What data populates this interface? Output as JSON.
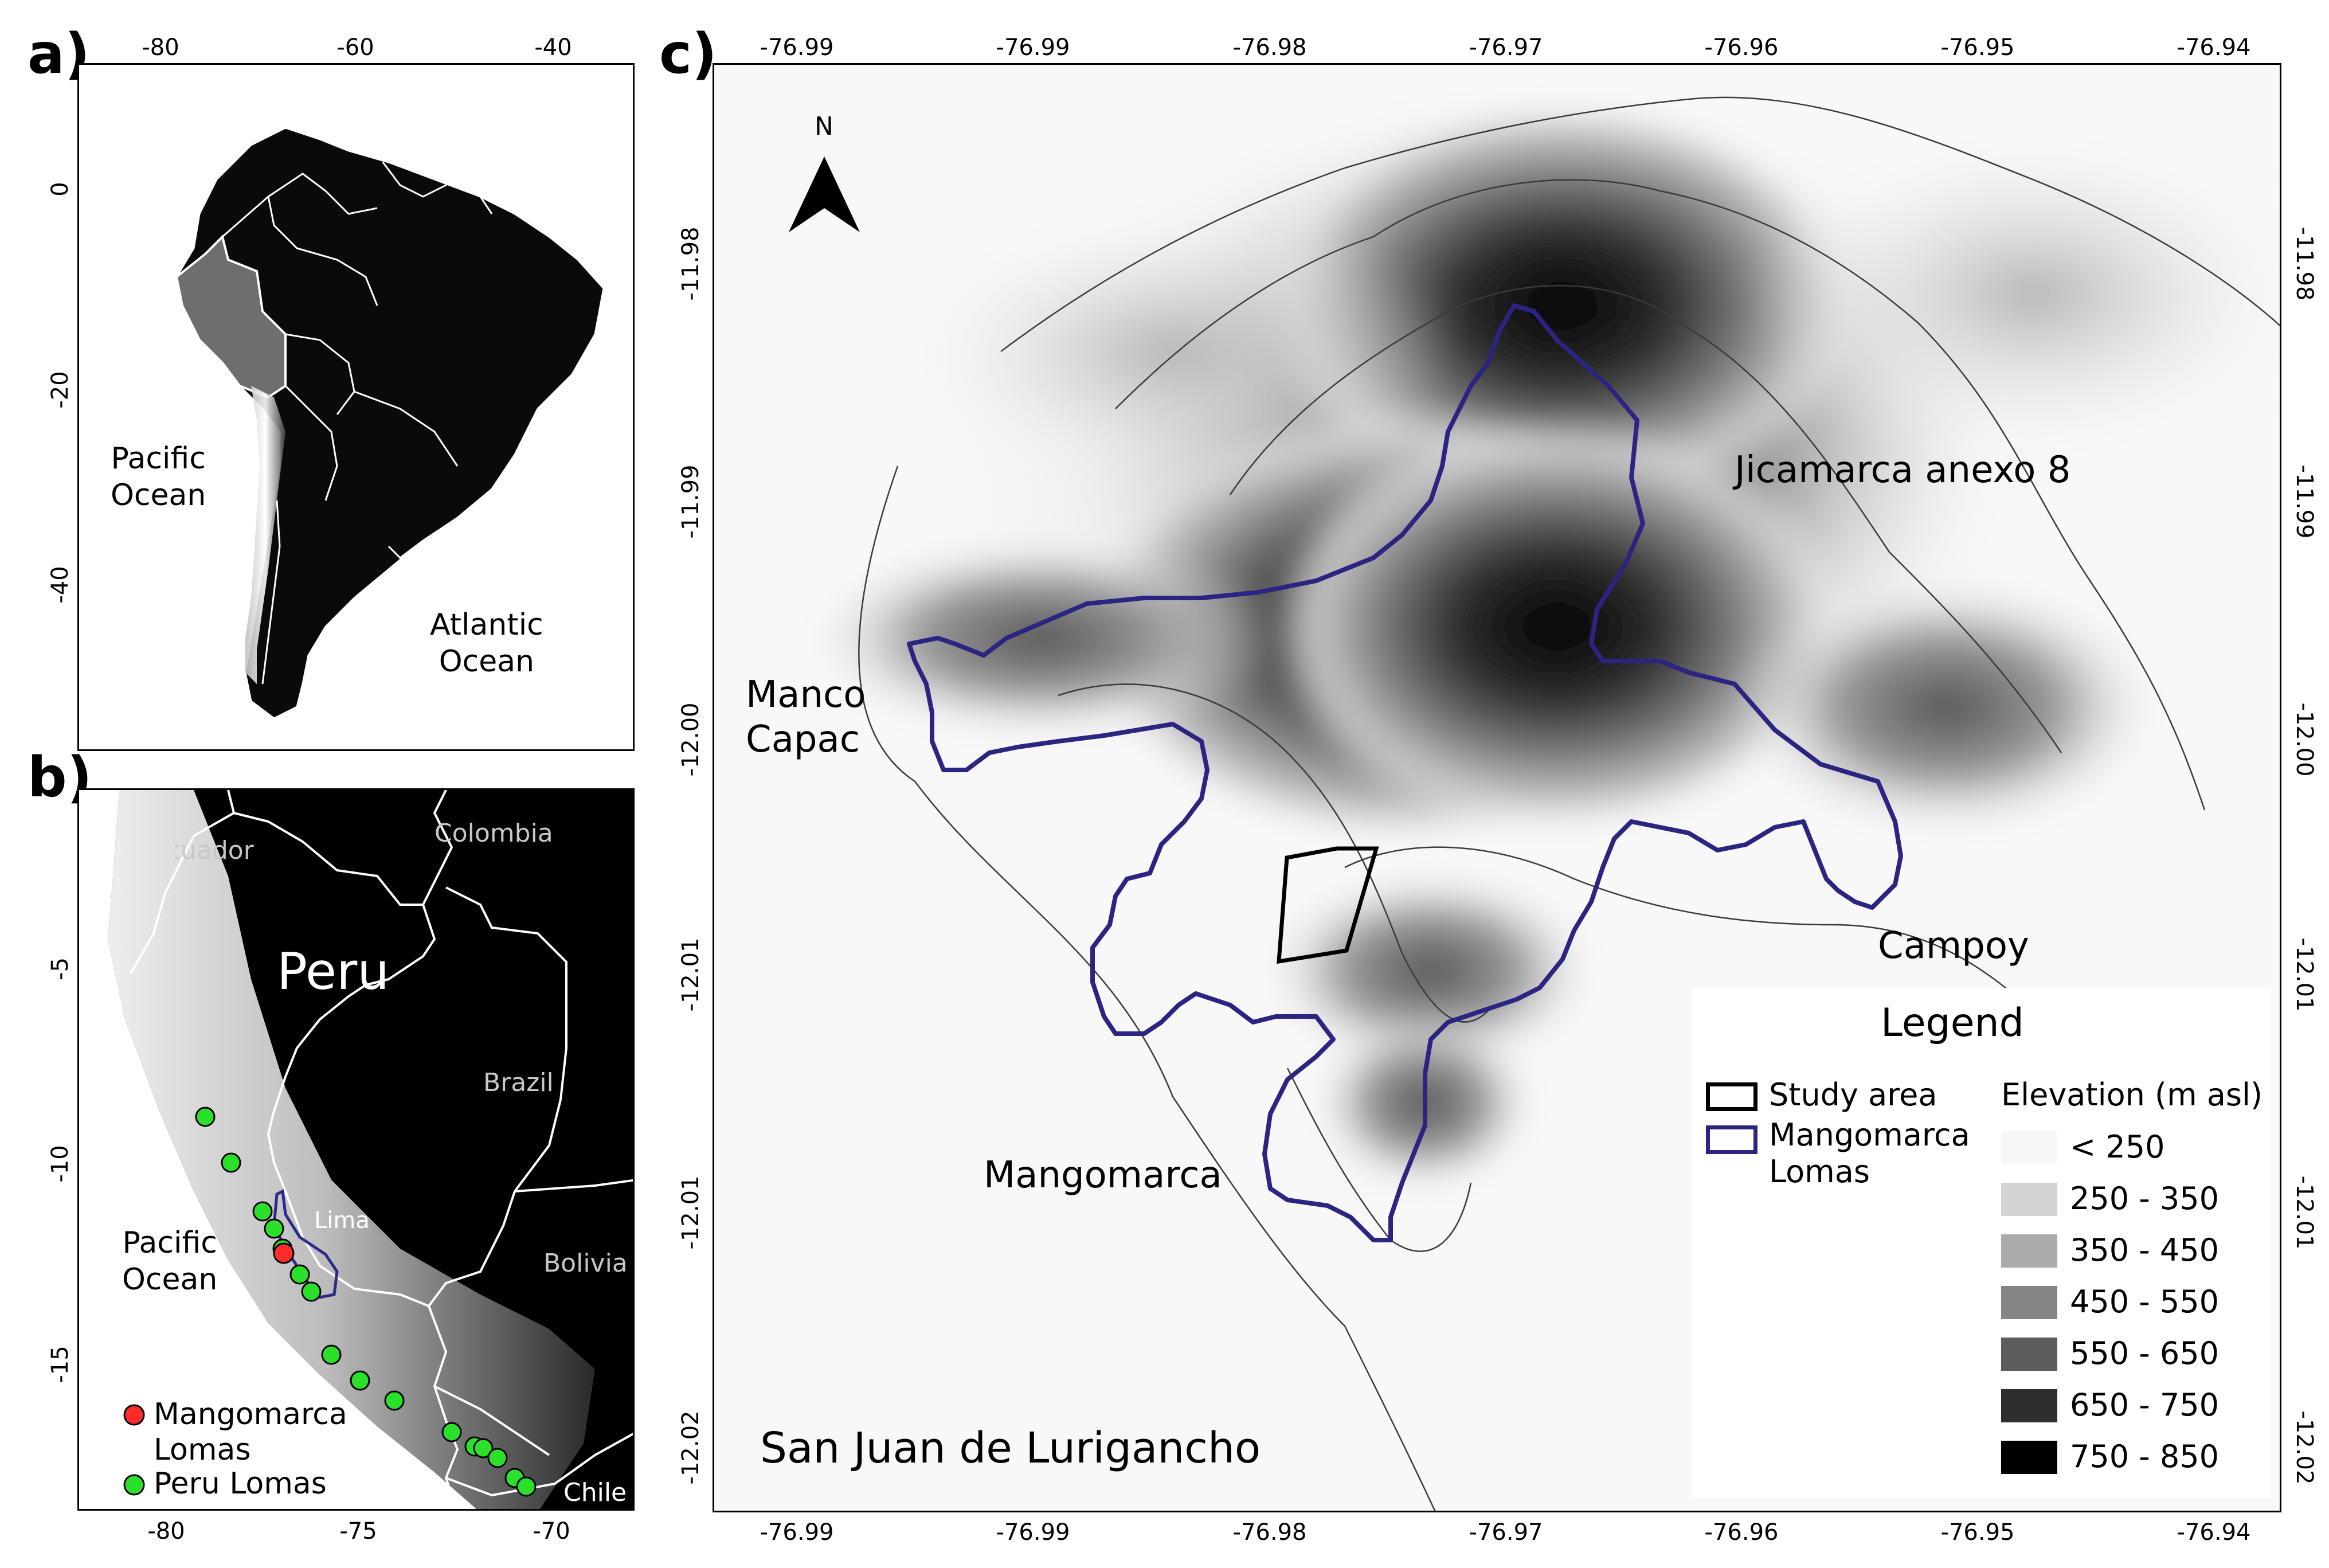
{
  "panels": {
    "a": {
      "letter": "a)",
      "x_ticks": [
        "-80",
        "-60",
        "-40"
      ],
      "y_ticks": [
        "0",
        "-20",
        "-40"
      ],
      "labels": {
        "pacific": [
          "Pacific",
          "Ocean"
        ],
        "atlantic": [
          "Atlantic",
          "Ocean"
        ]
      }
    },
    "b": {
      "letter": "b)",
      "x_ticks": [
        "-80",
        "-75",
        "-70"
      ],
      "y_ticks": [
        "-5",
        "-10",
        "-15"
      ],
      "labels": {
        "peru": "Peru",
        "colombia": "Colombia",
        "ecuador": "Ecuador",
        "brazil": "Brazil",
        "bolivia": "Bolivia",
        "chile": "Chile",
        "lima": "Lima",
        "pacific": [
          "Pacific",
          "Ocean"
        ]
      },
      "legend": {
        "mangomarca": [
          "Mangomarca",
          "Lomas"
        ],
        "peru_lomas": "Peru Lomas"
      },
      "colors": {
        "mangomarca_point": "#ff2a2a",
        "peru_lomas_point": "#2be02b",
        "lomas_outline": "#2a2a8c"
      }
    },
    "c": {
      "letter": "c)",
      "x_ticks": [
        "-76.99",
        "-76.99",
        "-76.98",
        "-76.97",
        "-76.96",
        "-76.95",
        "-76.94"
      ],
      "y_ticks": [
        "-11.98",
        "-11.99",
        "-12.00",
        "-12.01",
        "-12.01",
        "-12.02"
      ],
      "north_label": "N",
      "places": {
        "jicamarca": "Jicamarca anexo 8",
        "manco": [
          "Manco",
          "Capac"
        ],
        "campoy": "Campoy",
        "mangomarca": "Mangomarca",
        "sjl": "San Juan de Lurigancho"
      },
      "legend": {
        "title": "Legend",
        "study_area": "Study area",
        "mangomarca": [
          "Mangomarca",
          "Lomas"
        ],
        "elevation_title": "Elevation (m asl)",
        "elevation_classes": [
          {
            "label": "< 250",
            "color": "#f7f7f7"
          },
          {
            "label": "250 - 350",
            "color": "#d3d3d3"
          },
          {
            "label": "350 - 450",
            "color": "#ababab"
          },
          {
            "label": "450 - 550",
            "color": "#858585"
          },
          {
            "label": "550 - 650",
            "color": "#5d5d5d"
          },
          {
            "label": "650 - 750",
            "color": "#2e2e2e"
          },
          {
            "label": "750 - 850",
            "color": "#000000"
          }
        ]
      },
      "colors": {
        "lomas_outline": "#2b2582",
        "study_area_outline": "#000000"
      }
    }
  }
}
